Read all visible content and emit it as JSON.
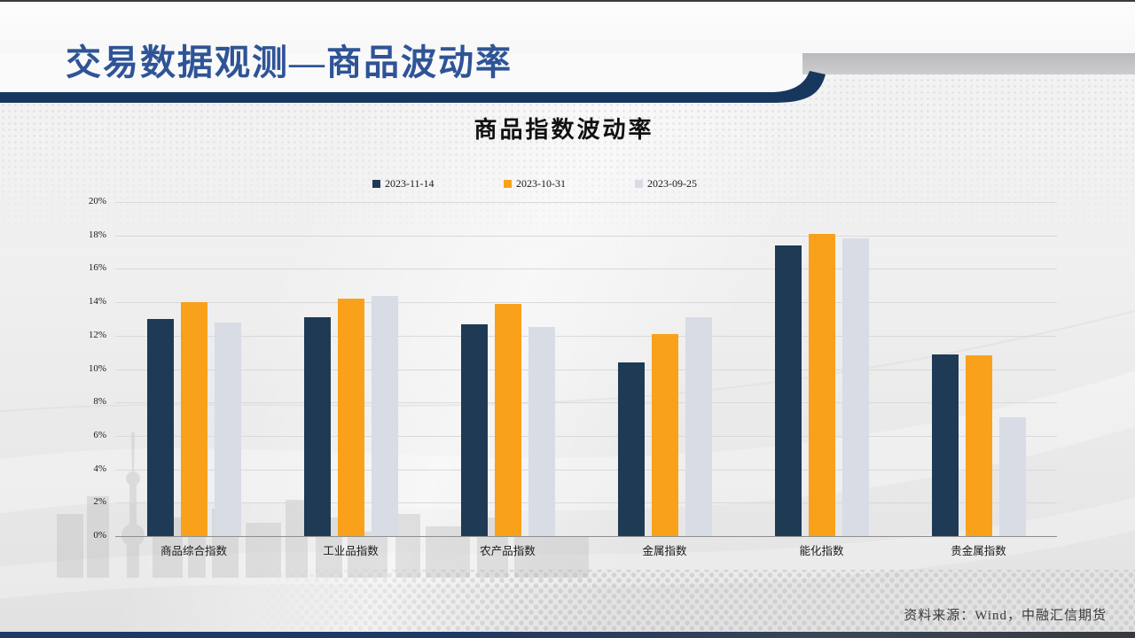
{
  "page": {
    "title": "交易数据观测—商品波动率"
  },
  "chart_data": {
    "type": "bar",
    "title": "商品指数波动率",
    "categories": [
      "商品综合指数",
      "工业品指数",
      "农产品指数",
      "金属指数",
      "能化指数",
      "贵金属指数"
    ],
    "series": [
      {
        "name": "2023-11-14",
        "color": "#1F3A54",
        "values": [
          13.0,
          13.1,
          12.7,
          10.4,
          17.4,
          10.9
        ]
      },
      {
        "name": "2023-10-31",
        "color": "#F9A11B",
        "values": [
          14.0,
          14.2,
          13.9,
          12.1,
          18.1,
          10.8
        ]
      },
      {
        "name": "2023-09-25",
        "color": "#D7DCE5",
        "values": [
          12.8,
          14.4,
          12.5,
          13.1,
          17.8,
          7.1
        ]
      }
    ],
    "ylim": [
      0,
      20
    ],
    "ytick_step": 2,
    "ytick_suffix": "%",
    "grid": "horizontal",
    "legend_position": "top-center"
  },
  "footer": {
    "source": "资料来源：Wind，中融汇信期货"
  },
  "colors": {
    "title_blue": "#2F5496",
    "divider_navy": "#17375E",
    "bottom_strip_navy": "#1F3864",
    "gridline": "#D9D9D9",
    "header_gray_band": "#C0C1C4"
  }
}
